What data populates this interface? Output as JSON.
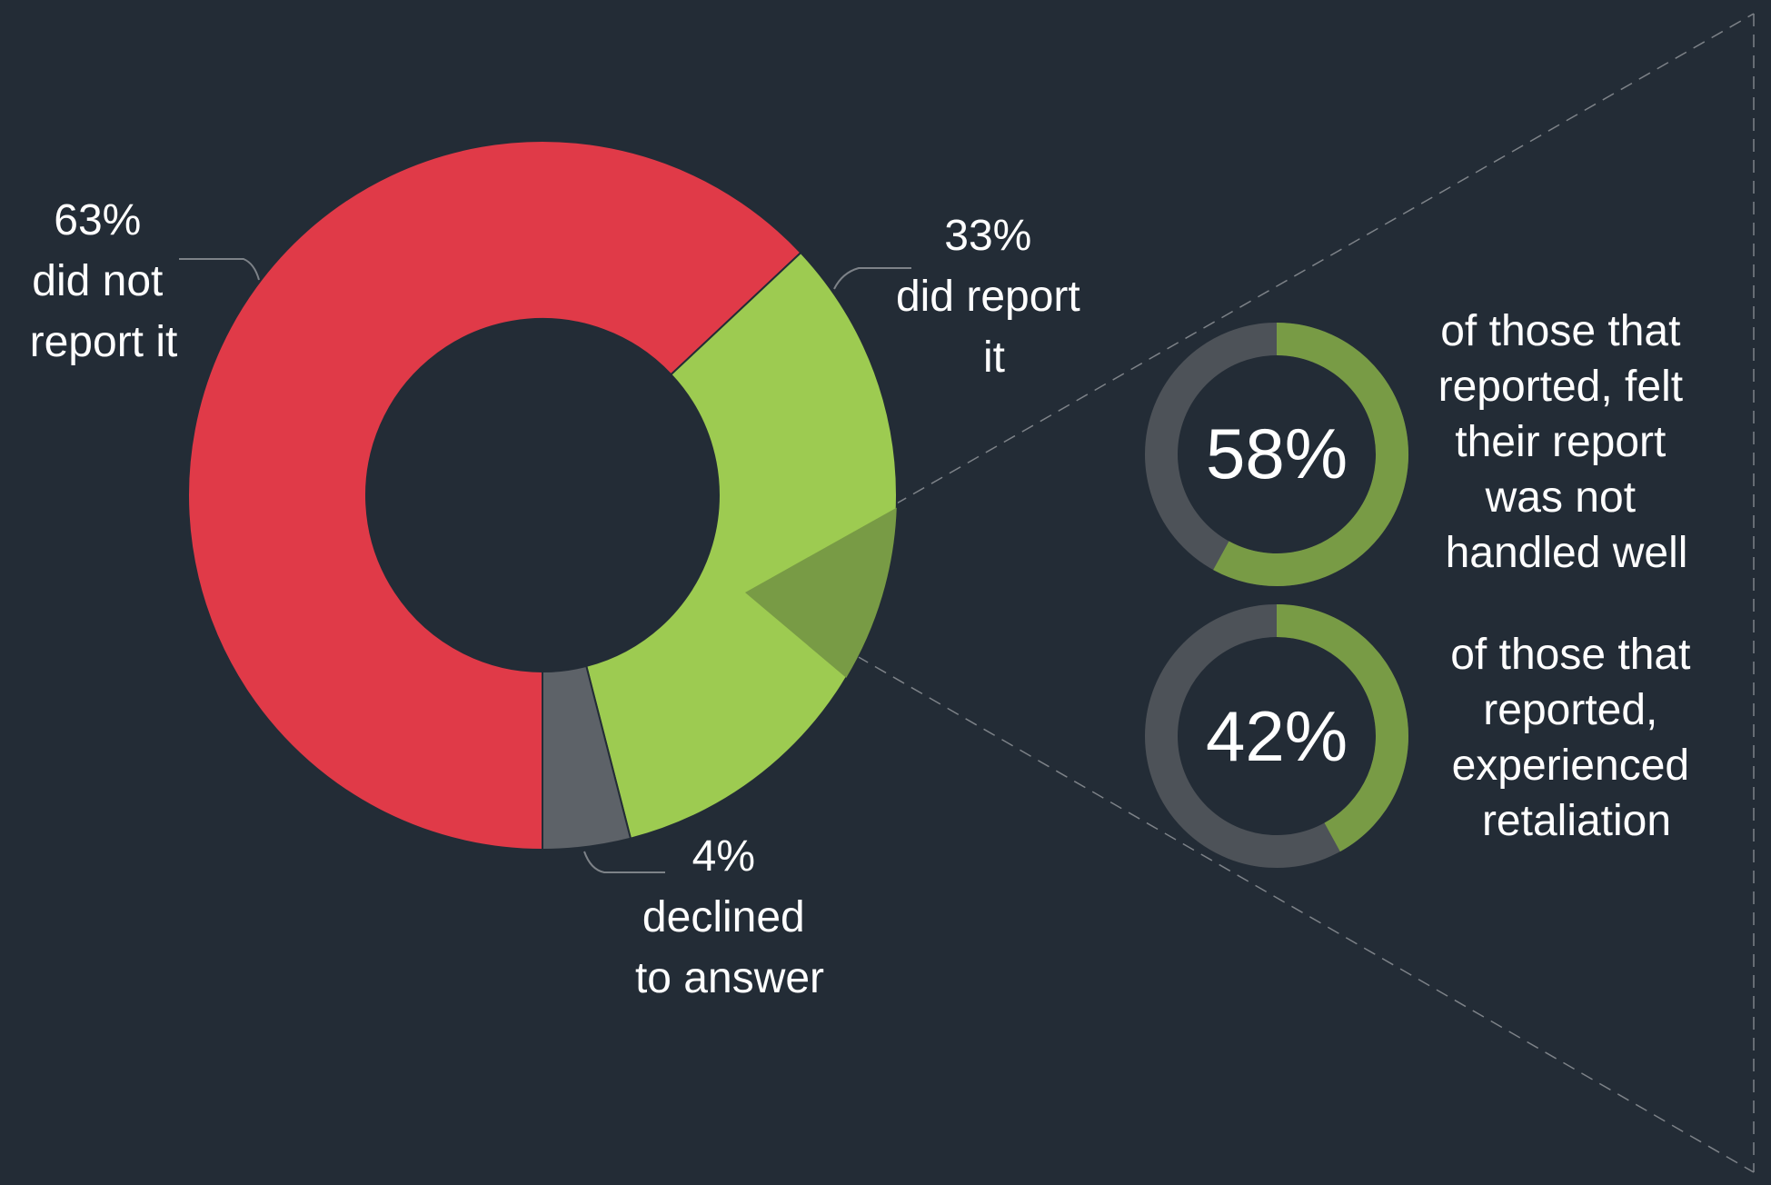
{
  "colors": {
    "background": "#232c36",
    "did_not_report": "#e03a48",
    "did_report": "#9dcb51",
    "declined": "#5d6268",
    "highlight": "#789b45",
    "ring_track": "#4d5258",
    "ring_fill": "#789b45",
    "text": "#ffffff",
    "connector": "#7d8288"
  },
  "chart_data": [
    {
      "type": "pie",
      "donut": true,
      "slices": [
        {
          "key": "did_not_report",
          "value": 63,
          "label": [
            "63%",
            "did not",
            "report it"
          ]
        },
        {
          "key": "did_report",
          "value": 33,
          "label": [
            "33%",
            "did report",
            "it"
          ]
        },
        {
          "key": "declined",
          "value": 4,
          "label": [
            "4%",
            "declined",
            "to answer"
          ]
        }
      ]
    },
    {
      "type": "pie",
      "donut": true,
      "value": 58,
      "center_label": "58%",
      "caption": [
        "of those that",
        "reported, felt",
        "their report",
        "was not",
        "handled well"
      ]
    },
    {
      "type": "pie",
      "donut": true,
      "value": 42,
      "center_label": "42%",
      "caption": [
        "of those that",
        "reported,",
        "experienced",
        "retaliation"
      ]
    }
  ]
}
